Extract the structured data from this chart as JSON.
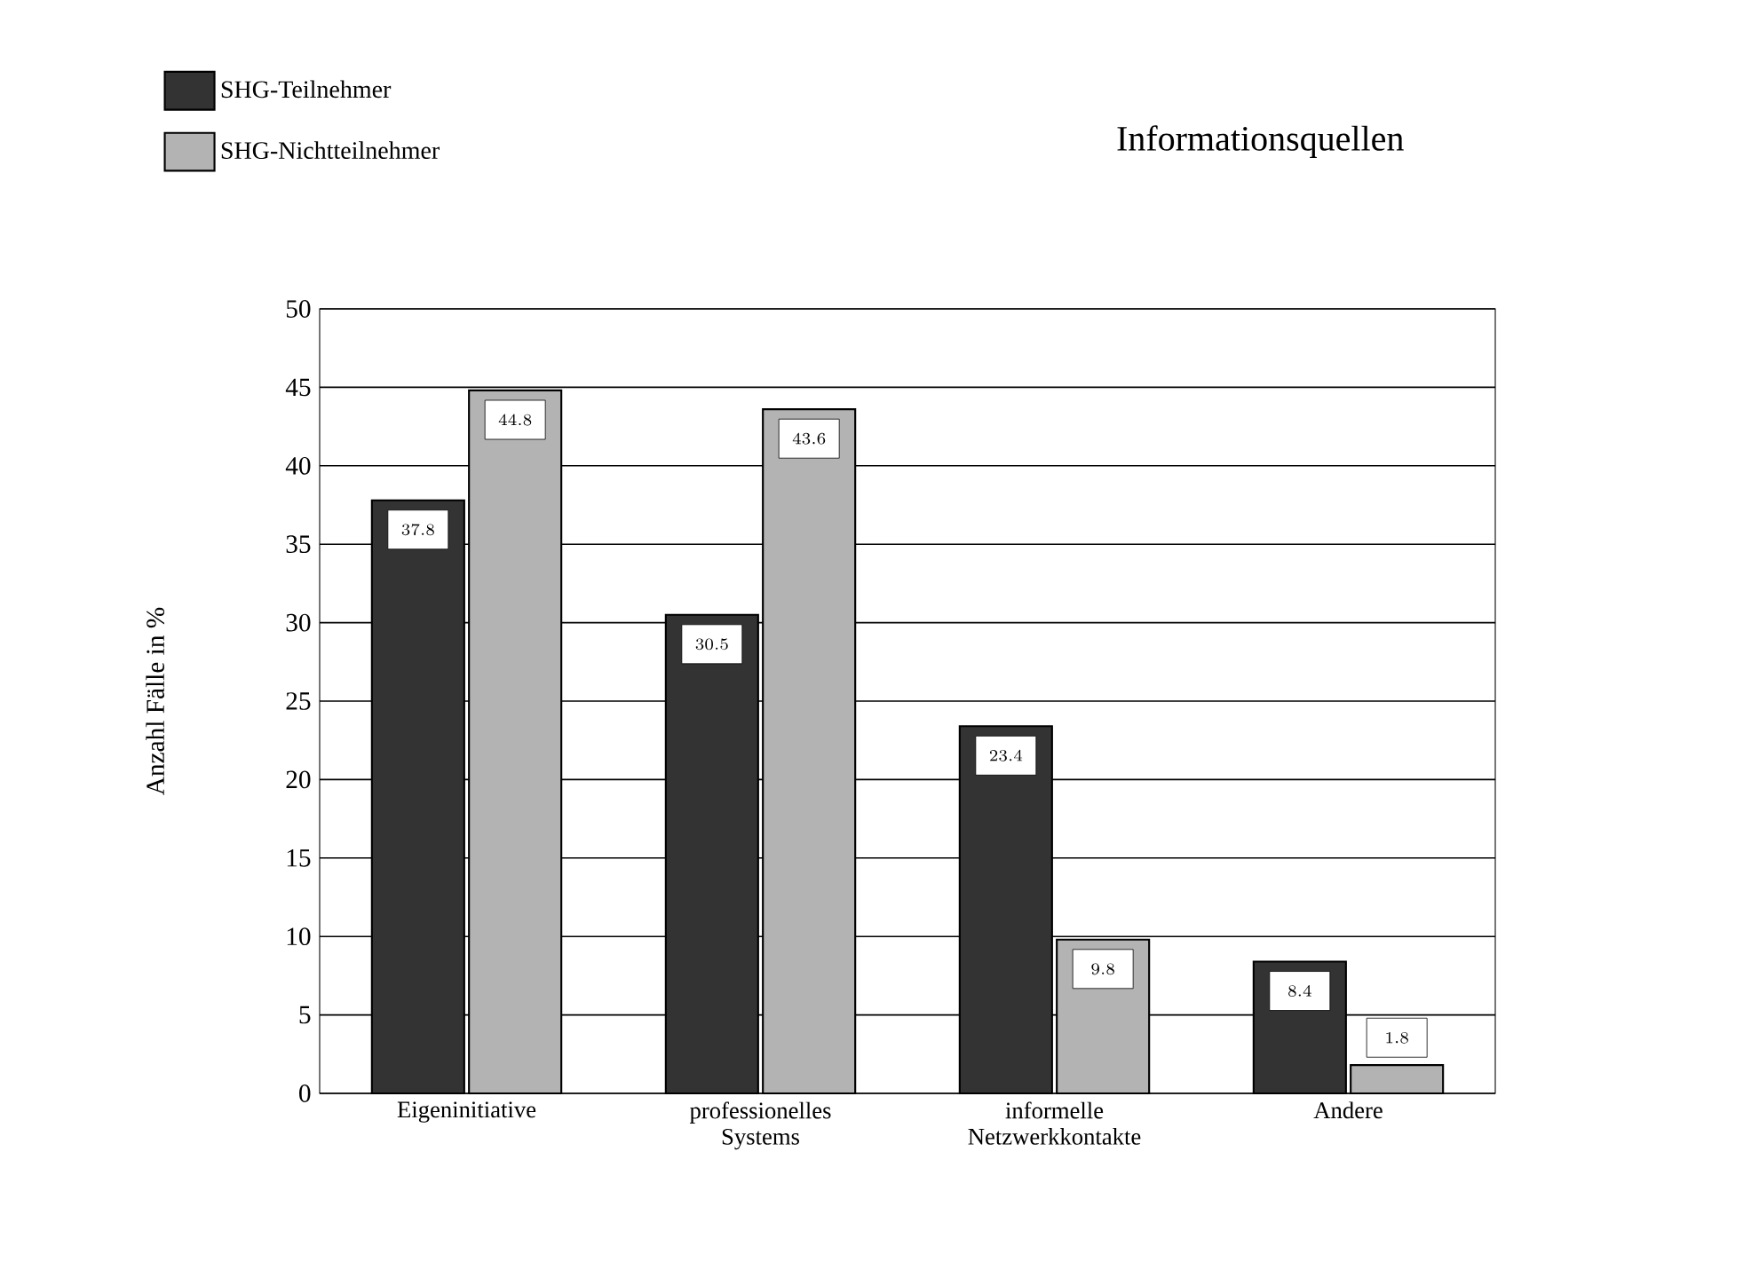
{
  "chart_data": {
    "type": "bar",
    "title": "Informationsquellen",
    "ylabel": "Anzahl Fälle in %",
    "categories": [
      "Eigeninitiative",
      "professionelles Systems",
      "informelle Netzwerkkontakte",
      "Andere"
    ],
    "series": [
      {
        "name": "SHG-Teilnehmer",
        "color": "#333333",
        "values": [
          37.8,
          30.5,
          23.4,
          8.4
        ]
      },
      {
        "name": "SHG-Nichtteilnehmer",
        "color": "#b3b3b3",
        "values": [
          44.8,
          43.6,
          9.8,
          1.8
        ]
      }
    ],
    "ylim": [
      0,
      50
    ],
    "yticks": [
      0,
      5,
      10,
      15,
      20,
      25,
      30,
      35,
      40,
      45,
      50
    ],
    "grid": "y",
    "legend": "top left",
    "data_labels": true
  }
}
